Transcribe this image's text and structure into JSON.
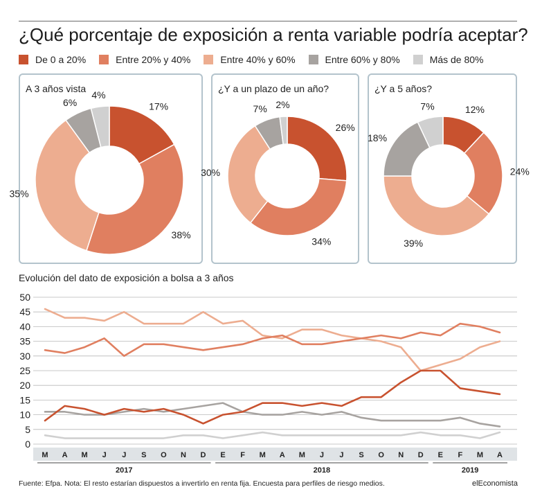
{
  "title": "¿Qué porcentaje de exposición a renta variable podría aceptar?",
  "legend": [
    {
      "label": "De 0 a 20%",
      "color": "#c8522f"
    },
    {
      "label": "Entre 20% y 40%",
      "color": "#e07f60"
    },
    {
      "label": "Entre 40% y 60%",
      "color": "#edad90"
    },
    {
      "label": "Entre 60% y 80%",
      "color": "#a7a3a0"
    },
    {
      "label": "Más de 80%",
      "color": "#d0d0d0"
    }
  ],
  "line_title": "Evolución del dato de exposición a bolsa a 3 años",
  "footer": {
    "source": "Fuente: Efpa. Nota: El resto estarían dispuestos a invertirlo en renta fija. Encuesta para perfiles de riesgo medios.",
    "brand": "elEconomista"
  },
  "chart_data": [
    {
      "type": "pie",
      "title": "A 3 años vista",
      "labels": [
        "17%",
        "38%",
        "35%",
        "6%",
        "4%"
      ],
      "values": [
        17,
        38,
        35,
        6,
        4
      ]
    },
    {
      "type": "pie",
      "title": "¿Y a un plazo de un año?",
      "labels": [
        "26%",
        "34%",
        "30%",
        "7%",
        "2%"
      ],
      "values": [
        26,
        34,
        30,
        7,
        2
      ]
    },
    {
      "type": "pie",
      "title": "¿Y a 5 años?",
      "labels": [
        "12%",
        "24%",
        "39%",
        "18%",
        "7%"
      ],
      "values": [
        12,
        24,
        39,
        18,
        7
      ]
    },
    {
      "type": "line",
      "title": "Evolución del dato de exposición a bolsa a 3 años",
      "x_month_labels": [
        "M",
        "A",
        "M",
        "J",
        "J",
        "S",
        "O",
        "N",
        "D",
        "E",
        "F",
        "M",
        "A",
        "M",
        "J",
        "J",
        "S",
        "O",
        "N",
        "D",
        "E",
        "F",
        "M",
        "A"
      ],
      "year_labels": [
        "2017",
        "2018",
        "2019"
      ],
      "ylim": [
        0,
        50
      ],
      "yticks": [
        0,
        5,
        10,
        15,
        20,
        25,
        30,
        35,
        40,
        45,
        50
      ],
      "grid": true,
      "series": [
        {
          "name": "De 0 a 20%",
          "color": "#c8522f",
          "values": [
            8,
            13,
            12,
            10,
            12,
            11,
            12,
            10,
            7,
            10,
            11,
            14,
            14,
            13,
            14,
            13,
            16,
            16,
            21,
            25,
            25,
            19,
            18,
            17
          ]
        },
        {
          "name": "Entre 20% y 40%",
          "color": "#e07f60",
          "values": [
            32,
            31,
            33,
            36,
            30,
            34,
            34,
            33,
            32,
            33,
            34,
            36,
            37,
            34,
            34,
            35,
            36,
            37,
            36,
            38,
            37,
            41,
            40,
            38
          ]
        },
        {
          "name": "Entre 40% y 60%",
          "color": "#edad90",
          "values": [
            46,
            43,
            43,
            42,
            45,
            41,
            41,
            41,
            45,
            41,
            42,
            37,
            36,
            39,
            39,
            37,
            36,
            35,
            33,
            25,
            27,
            29,
            33,
            35
          ]
        },
        {
          "name": "Entre 60% y 80%",
          "color": "#a7a3a0",
          "values": [
            11,
            11,
            10,
            10,
            11,
            12,
            11,
            12,
            13,
            14,
            11,
            10,
            10,
            11,
            10,
            11,
            9,
            8,
            8,
            8,
            8,
            9,
            7,
            6
          ]
        },
        {
          "name": "Más de 80%",
          "color": "#d0d0d0",
          "values": [
            3,
            2,
            2,
            2,
            2,
            2,
            2,
            3,
            3,
            2,
            3,
            4,
            3,
            3,
            3,
            3,
            3,
            3,
            3,
            4,
            3,
            3,
            2,
            4
          ]
        }
      ]
    }
  ]
}
